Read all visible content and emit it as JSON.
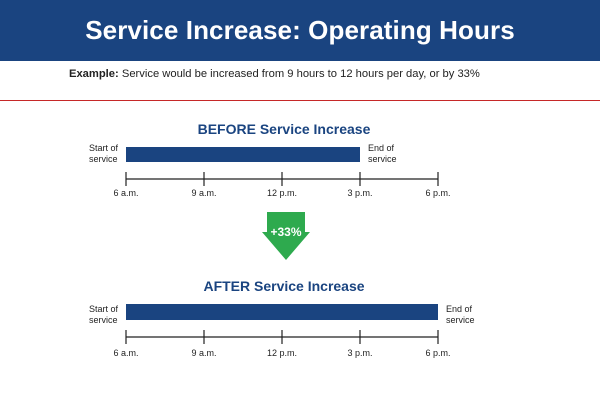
{
  "header": {
    "title": "Service Increase: Operating Hours"
  },
  "example": {
    "label": "Example:",
    "text": " Service would be increased from 9 hours to 12 hours per day, or by 33%"
  },
  "colors": {
    "header_bg": "#1a4480",
    "bar": "#1a4480",
    "rule": "#c62828",
    "arrow": "#2eaa4e"
  },
  "before": {
    "title": "BEFORE Service Increase",
    "start_label": [
      "Start of",
      "service"
    ],
    "end_label": [
      "End of",
      "service"
    ]
  },
  "after": {
    "title": "AFTER Service Increase",
    "start_label": [
      "Start of",
      "service"
    ],
    "end_label": [
      "End of",
      "service"
    ]
  },
  "change": {
    "label": "+33%",
    "icon": "arrow-down-icon"
  },
  "chart_data": [
    {
      "type": "bar",
      "title": "BEFORE Service Increase",
      "ticks": [
        "6 a.m.",
        "9 a.m.",
        "12 p.m.",
        "3 p.m.",
        "6 p.m."
      ],
      "xlim_hours": [
        6,
        18
      ],
      "bar": {
        "start_hour": 6,
        "end_hour": 15
      }
    },
    {
      "type": "bar",
      "title": "AFTER Service Increase",
      "ticks": [
        "6 a.m.",
        "9 a.m.",
        "12 p.m.",
        "3 p.m.",
        "6 p.m."
      ],
      "xlim_hours": [
        6,
        18
      ],
      "bar": {
        "start_hour": 6,
        "end_hour": 18
      }
    }
  ]
}
